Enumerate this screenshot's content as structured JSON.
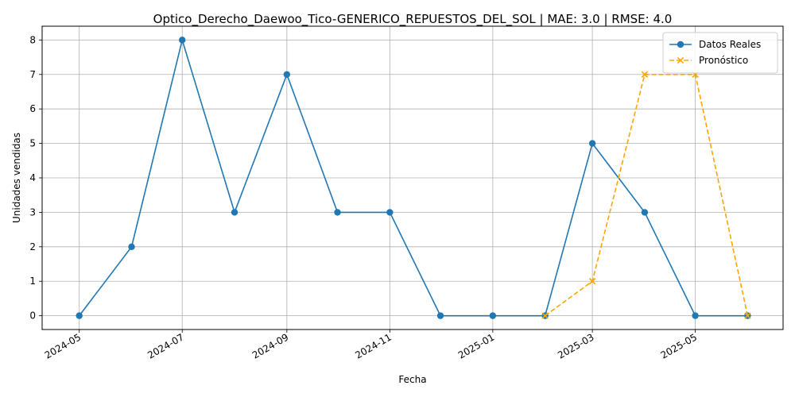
{
  "chart_data": {
    "type": "line",
    "title": "Optico_Derecho_Daewoo_Tico-GENERICO_REPUESTOS_DEL_SOL | MAE: 3.0 | RMSE: 4.0",
    "xlabel": "Fecha",
    "ylabel": "Unidades vendidas",
    "x_tick_labels": [
      "2024-05",
      "2024-07",
      "2024-09",
      "2024-11",
      "2025-01",
      "2025-03",
      "2025-05"
    ],
    "y_tick_labels": [
      "0",
      "1",
      "2",
      "3",
      "4",
      "5",
      "6",
      "7",
      "8"
    ],
    "ylim": [
      -0.4,
      8.4
    ],
    "xlim": [
      "2024-04-09",
      "2025-06-22"
    ],
    "grid": true,
    "legend_position": "top-right",
    "series": [
      {
        "name": "Datos Reales",
        "color": "#1f77b4",
        "marker": "circle",
        "line": "solid",
        "x": [
          "2024-05-01",
          "2024-06-01",
          "2024-07-01",
          "2024-08-01",
          "2024-09-01",
          "2024-10-01",
          "2024-11-01",
          "2024-12-01",
          "2025-01-01",
          "2025-02-01",
          "2025-03-01",
          "2025-04-01",
          "2025-05-01",
          "2025-06-01"
        ],
        "values": [
          0,
          2,
          8,
          3,
          7,
          3,
          3,
          0,
          0,
          0,
          5,
          3,
          0,
          0
        ]
      },
      {
        "name": "Pronóstico",
        "color": "#ffa500",
        "marker": "x",
        "line": "dashed",
        "x": [
          "2025-02-01",
          "2025-03-01",
          "2025-04-01",
          "2025-05-01",
          "2025-06-01"
        ],
        "values": [
          0,
          1,
          7,
          7,
          0
        ]
      }
    ]
  }
}
